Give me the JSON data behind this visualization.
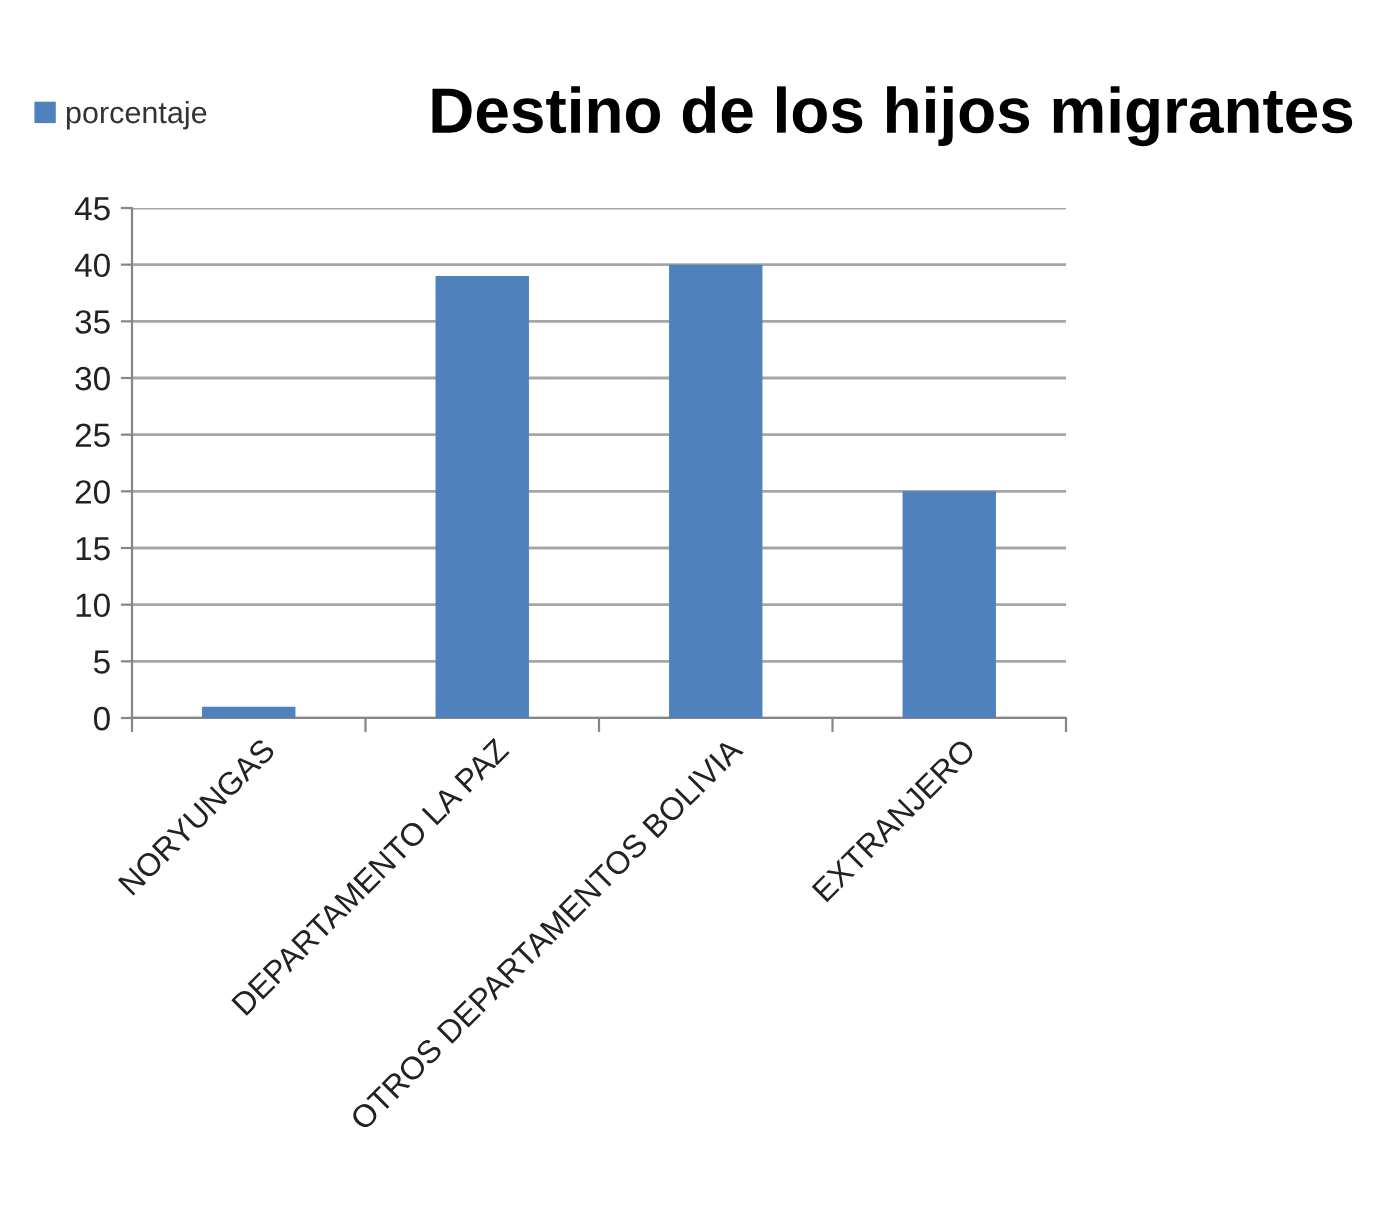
{
  "chart_data": {
    "type": "bar",
    "title": "Destino de los hijos migrantes",
    "categories": [
      "NORYUNGAS",
      "DEPARTAMENTO LA PAZ",
      "OTROS DEPARTAMENTOS BOLIVIA",
      "EXTRANJERO"
    ],
    "series": [
      {
        "name": "porcentaje",
        "color": "#4f81bd",
        "values": [
          1,
          39,
          40,
          20
        ]
      }
    ],
    "ylim": [
      0,
      45
    ],
    "yticks": [
      0,
      5,
      10,
      15,
      20,
      25,
      30,
      35,
      40,
      45
    ],
    "grid": "y",
    "legend": "top left"
  }
}
